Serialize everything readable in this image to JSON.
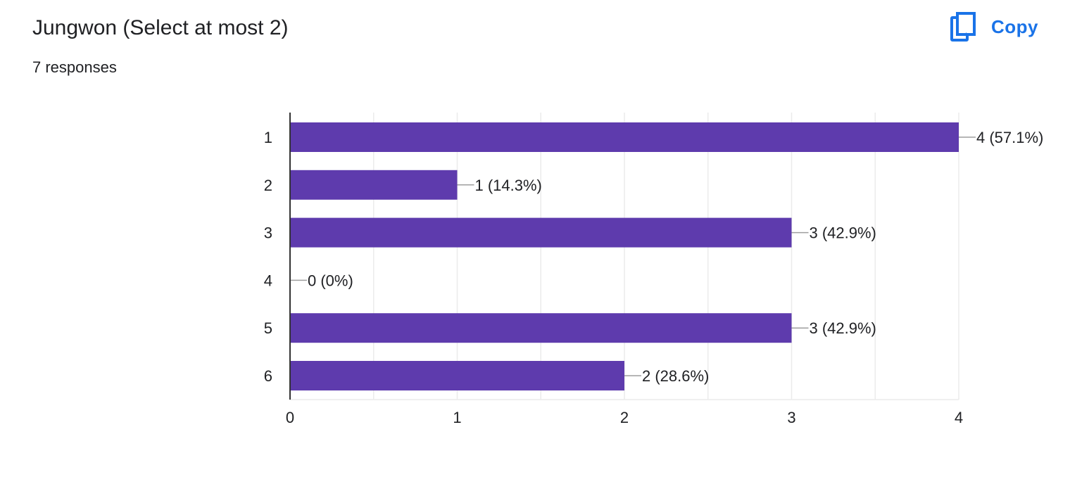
{
  "header": {
    "title": "Jungwon (Select at most 2)",
    "responses": "7 responses",
    "copy_label": "Copy",
    "copy_icon": "copy-icon"
  },
  "colors": {
    "accent": "#1a73e8",
    "bar": "#5e3bad",
    "grid": "#ebebeb",
    "axis": "#333333",
    "connector": "#9e9e9e",
    "text": "#202124"
  },
  "chart_data": {
    "type": "bar",
    "orientation": "horizontal",
    "categories": [
      "1",
      "2",
      "3",
      "4",
      "5",
      "6"
    ],
    "values": [
      4,
      1,
      3,
      0,
      3,
      2
    ],
    "data_labels": [
      "4 (57.1%)",
      "1 (14.3%)",
      "3 (42.9%)",
      "0 (0%)",
      "3 (42.9%)",
      "2 (28.6%)"
    ],
    "xlim": [
      0,
      4
    ],
    "x_ticks": [
      "0",
      "1",
      "2",
      "3",
      "4"
    ],
    "grid": true,
    "title": "",
    "xlabel": "",
    "ylabel": ""
  }
}
